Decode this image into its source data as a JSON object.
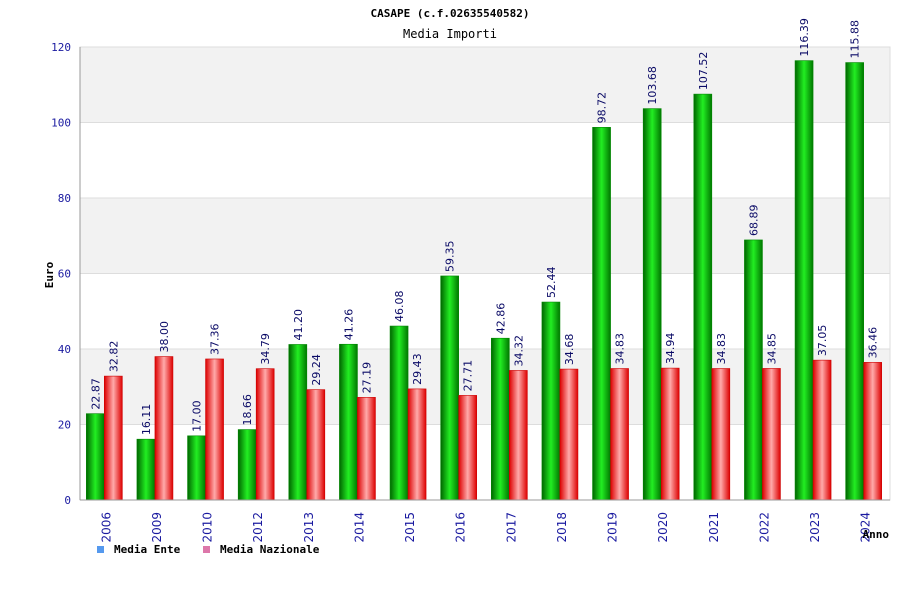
{
  "chart_data": {
    "type": "bar",
    "title": "CASAPE (c.f.02635540582)",
    "subtitle": "Media Importi",
    "xlabel": "Anno",
    "ylabel": "Euro",
    "ylim": [
      0,
      120
    ],
    "yticks": [
      0,
      20,
      40,
      60,
      80,
      100,
      120
    ],
    "grid": true,
    "legend_position": "bottom-left",
    "categories": [
      "2006",
      "2009",
      "2010",
      "2012",
      "2013",
      "2014",
      "2015",
      "2016",
      "2017",
      "2018",
      "2019",
      "2020",
      "2021",
      "2022",
      "2023",
      "2024"
    ],
    "series": [
      {
        "name": "Media Ente",
        "color": "#00c000",
        "legend_color": "#5599ee",
        "values": [
          22.87,
          16.11,
          17.0,
          18.66,
          41.2,
          41.26,
          46.08,
          59.35,
          42.86,
          52.44,
          98.72,
          103.68,
          107.52,
          68.89,
          116.39,
          115.88
        ],
        "labels": [
          "22.87",
          "16.11",
          "17.00",
          "18.66",
          "41.20",
          "41.26",
          "46.08",
          "59.35",
          "42.86",
          "52.44",
          "98.72",
          "103.68",
          "107.52",
          "68.89",
          "116.39",
          "115.88"
        ]
      },
      {
        "name": "Media Nazionale",
        "color": "#ee1111",
        "legend_color": "#dd77aa",
        "values": [
          32.82,
          38.0,
          37.36,
          34.79,
          29.24,
          27.19,
          29.43,
          27.71,
          34.32,
          34.68,
          34.83,
          34.94,
          34.83,
          34.85,
          37.05,
          36.46
        ],
        "labels": [
          "32.82",
          "38.00",
          "37.36",
          "34.79",
          "29.24",
          "27.19",
          "29.43",
          "27.71",
          "34.32",
          "34.68",
          "34.83",
          "34.94",
          "34.83",
          "34.85",
          "37.05",
          "36.46"
        ]
      }
    ]
  },
  "colors": {
    "axis_text": "#1a1aa0",
    "band": "#f2f2f2",
    "title": "#222222"
  }
}
